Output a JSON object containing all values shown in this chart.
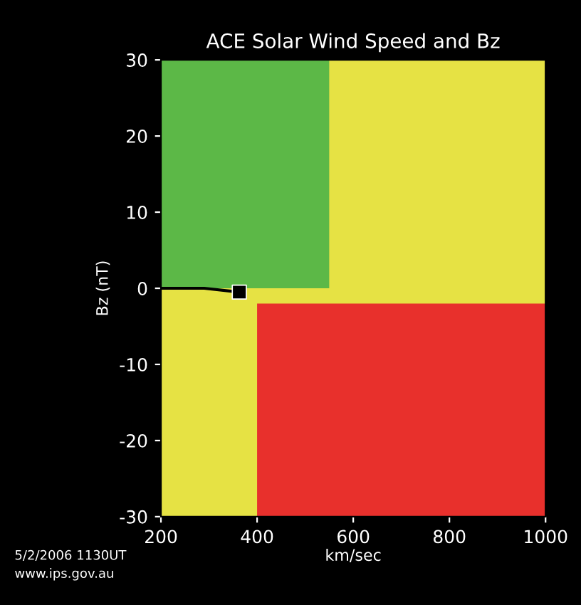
{
  "chart_data": {
    "type": "area",
    "title": "ACE Solar Wind Speed and Bz",
    "xlabel": "km/sec",
    "ylabel": "Bz (nT)",
    "annotations": [
      "5/2/2006 1130UT",
      "www.ips.gov.au"
    ],
    "bands": [
      {
        "axis": "y",
        "from": -30,
        "to": 30,
        "color": "#e6e244"
      },
      {
        "axis": "x",
        "from": 400,
        "to": 1000,
        "color": "#e8302c"
      },
      {
        "axis": "y",
        "from": -2,
        "to": 30,
        "color": "#e6e244"
      }
    ],
    "series": [
      {
        "color": "#5cb847",
        "x": [
          200,
          550
        ],
        "values": [
          30,
          30
        ]
      },
      {
        "type": "line",
        "color": "#000000",
        "x": [
          200,
          290,
          363
        ],
        "values": [
          0,
          0,
          -0.5
        ],
        "marker": "none"
      },
      {
        "type": "scatter",
        "color": "#000000",
        "x": [
          363
        ],
        "values": [
          -0.5
        ],
        "marker": "square"
      }
    ],
    "xlim": [
      200,
      1000
    ],
    "ylim": [
      -30,
      30
    ],
    "xticks": [
      200,
      400,
      600,
      800,
      1000
    ],
    "yticks": [
      -30,
      -20,
      -10,
      0,
      10,
      20,
      30
    ],
    "legend": false
  }
}
